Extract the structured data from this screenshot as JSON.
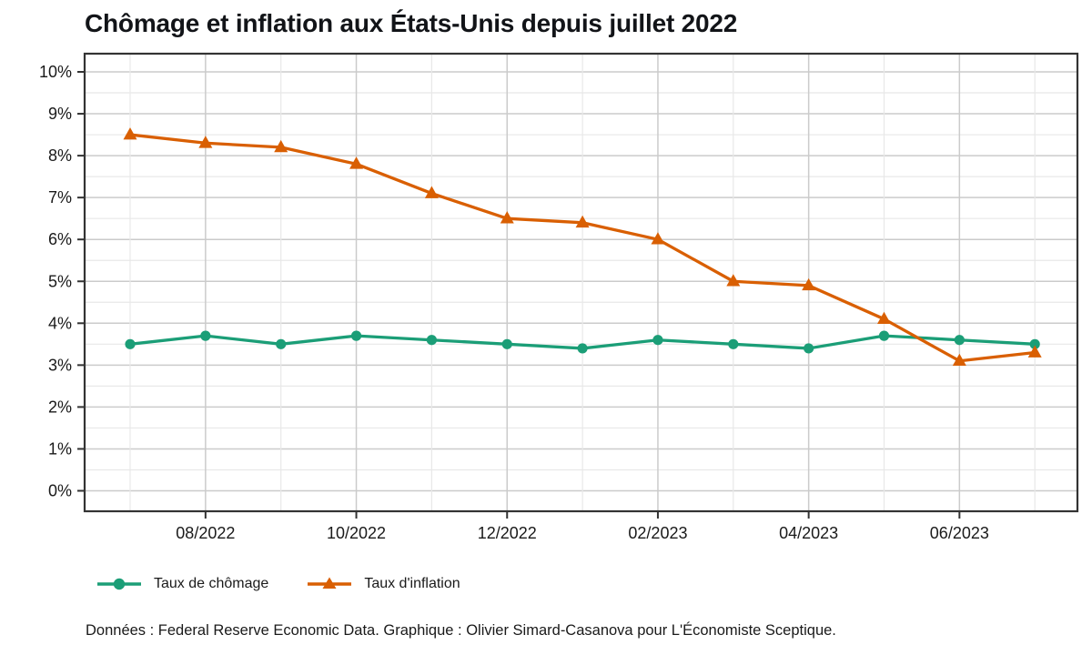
{
  "title": "Chômage et inflation aux États-Unis depuis juillet 2022",
  "caption": "Données : Federal Reserve Economic Data. Graphique : Olivier Simard-Casanova pour L'Économiste Sceptique.",
  "colors": {
    "unemployment": "#1B9E77",
    "inflation": "#D95F02",
    "grid_major": "#CBCBCB",
    "grid_minor": "#E8E8E8",
    "panel_border": "#333333",
    "tick": "#333333",
    "axis_text": "#1A1A1A"
  },
  "chart_data": {
    "type": "line",
    "title": "Chômage et inflation aux États-Unis depuis juillet 2022",
    "x": [
      "07/2022",
      "08/2022",
      "09/2022",
      "10/2022",
      "11/2022",
      "12/2022",
      "01/2023",
      "02/2023",
      "03/2023",
      "04/2023",
      "05/2023",
      "06/2023",
      "07/2023"
    ],
    "x_tick_labels": [
      "08/2022",
      "10/2022",
      "12/2022",
      "02/2023",
      "04/2023",
      "06/2023"
    ],
    "x_tick_indices": [
      1,
      3,
      5,
      7,
      9,
      11
    ],
    "y_tick_labels": [
      "0%",
      "1%",
      "2%",
      "3%",
      "4%",
      "5%",
      "6%",
      "7%",
      "8%",
      "9%",
      "10%"
    ],
    "y_tick_values": [
      0,
      1,
      2,
      3,
      4,
      5,
      6,
      7,
      8,
      9,
      10
    ],
    "ylim": [
      -0.5,
      10.4
    ],
    "grid": true,
    "legend_position": "bottom-left",
    "series": [
      {
        "name": "Taux de chômage",
        "marker": "circle",
        "color": "#1B9E77",
        "values": [
          3.5,
          3.7,
          3.5,
          3.7,
          3.6,
          3.5,
          3.4,
          3.6,
          3.5,
          3.4,
          3.7,
          3.6,
          3.5
        ]
      },
      {
        "name": "Taux d'inflation",
        "marker": "triangle",
        "color": "#D95F02",
        "values": [
          8.5,
          8.3,
          8.2,
          7.8,
          7.1,
          6.5,
          6.4,
          6.0,
          5.0,
          4.9,
          4.1,
          3.1,
          3.3
        ]
      }
    ]
  }
}
